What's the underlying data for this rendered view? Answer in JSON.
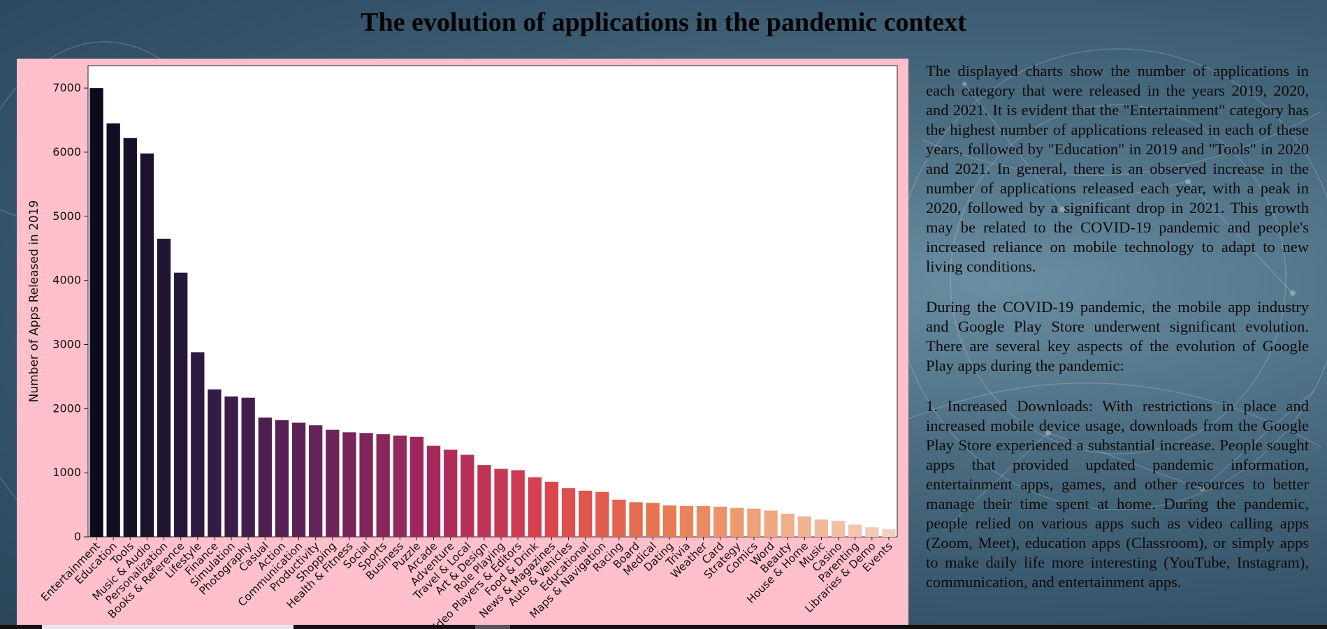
{
  "page": {
    "title": "The evolution of applications in the pandemic context"
  },
  "colors": {
    "chart_panel_bg": "#ffc0cb",
    "bar_palette_start": "#0d0b1c",
    "bar_palette_end": "#f2cfc3"
  },
  "text": {
    "paragraphs": [
      "The displayed charts show the number of applications in each category that were released in the years 2019, 2020, and 2021. It is evident that the \"Entertainment\" category has the highest number of applications released in each of these years, followed by \"Education\" in 2019 and \"Tools\" in 2020 and 2021. In general, there is an observed increase in the number of applications released each year, with a peak in 2020, followed by a significant drop in 2021. This growth may be related to the COVID-19 pandemic and people's increased reliance on mobile technology to adapt to new living conditions.",
      "During the COVID-19 pandemic, the mobile app industry and Google Play Store underwent significant evolution. There are several key aspects of the evolution of Google Play apps during the pandemic:",
      "1. Increased Downloads: With restrictions in place and increased mobile device usage, downloads from the Google Play Store experienced a substantial increase. People sought apps that provided updated pandemic information, entertainment apps, games, and other resources to better manage their time spent at home. During the pandemic, people relied on various apps such as video calling apps (Zoom, Meet), education apps (Classroom), or simply apps to make daily life more interesting (YouTube, Instagram), communication, and entertainment apps."
    ]
  },
  "chart_data": {
    "type": "bar",
    "ylabel": "Number of Apps Released in 2019",
    "xlabel": "",
    "ylim": [
      0,
      7350
    ],
    "yticks": [
      0,
      1000,
      2000,
      3000,
      4000,
      5000,
      6000,
      7000
    ],
    "grid": false,
    "categories": [
      "Entertainment",
      "Education",
      "Tools",
      "Music & Audio",
      "Personalization",
      "Books & Reference",
      "Lifestyle",
      "Finance",
      "Simulation",
      "Photography",
      "Casual",
      "Action",
      "Communication",
      "Productivity",
      "Shopping",
      "Health & Fitness",
      "Social",
      "Sports",
      "Business",
      "Puzzle",
      "Arcade",
      "Adventure",
      "Travel & Local",
      "Art & Design",
      "Role Playing",
      "Video Players & Editors",
      "Food & Drink",
      "News & Magazines",
      "Auto & Vehicles",
      "Educational",
      "Maps & Navigation",
      "Racing",
      "Board",
      "Medical",
      "Dating",
      "Trivia",
      "Weather",
      "Card",
      "Strategy",
      "Comics",
      "Word",
      "Beauty",
      "House & Home",
      "Music",
      "Casino",
      "Parenting",
      "Libraries & Demo",
      "Events"
    ],
    "values": [
      7000,
      6450,
      6220,
      5980,
      4650,
      4120,
      2880,
      2300,
      2190,
      2170,
      1860,
      1820,
      1780,
      1740,
      1670,
      1630,
      1620,
      1600,
      1580,
      1560,
      1420,
      1360,
      1280,
      1120,
      1060,
      1040,
      930,
      860,
      760,
      720,
      700,
      580,
      540,
      530,
      490,
      480,
      480,
      470,
      450,
      440,
      410,
      360,
      320,
      270,
      250,
      190,
      150,
      120
    ]
  }
}
